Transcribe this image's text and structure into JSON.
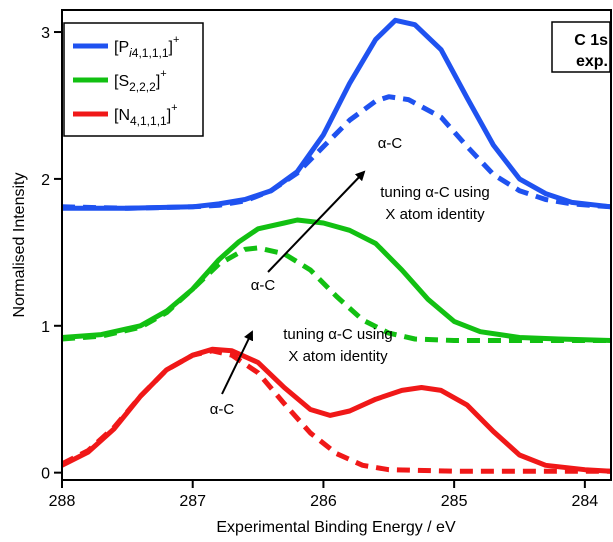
{
  "chart_data": {
    "type": "line",
    "xlabel": "Experimental Binding Energy / eV",
    "ylabel": "Normalised Intensity",
    "xlim": [
      288,
      283.8
    ],
    "ylim": [
      -0.05,
      3.15
    ],
    "x_reversed": true,
    "x_ticks": [
      288,
      287,
      286,
      285,
      284
    ],
    "y_ticks": [
      0,
      1,
      2,
      3
    ],
    "grid": false,
    "legend_position": "top-left",
    "badge": [
      "C 1s",
      "exp."
    ],
    "series": [
      {
        "name": "[Pi4,1,1,1]+",
        "legend": {
          "base": "[P",
          "sub": "i4,1,1,1",
          "close": "]",
          "sup": "+"
        },
        "color": "#1f52f0",
        "solid": [
          [
            288.0,
            1.8
          ],
          [
            287.5,
            1.8
          ],
          [
            287.0,
            1.81
          ],
          [
            286.8,
            1.83
          ],
          [
            286.6,
            1.86
          ],
          [
            286.4,
            1.92
          ],
          [
            286.2,
            2.05
          ],
          [
            286.0,
            2.3
          ],
          [
            285.8,
            2.65
          ],
          [
            285.6,
            2.95
          ],
          [
            285.45,
            3.08
          ],
          [
            285.3,
            3.05
          ],
          [
            285.1,
            2.88
          ],
          [
            284.9,
            2.55
          ],
          [
            284.7,
            2.23
          ],
          [
            284.5,
            2.0
          ],
          [
            284.3,
            1.9
          ],
          [
            284.1,
            1.84
          ],
          [
            283.8,
            1.81
          ]
        ],
        "dashed": [
          [
            288.0,
            1.81
          ],
          [
            287.5,
            1.8
          ],
          [
            287.0,
            1.81
          ],
          [
            286.8,
            1.82
          ],
          [
            286.6,
            1.85
          ],
          [
            286.4,
            1.92
          ],
          [
            286.2,
            2.04
          ],
          [
            286.0,
            2.22
          ],
          [
            285.8,
            2.4
          ],
          [
            285.6,
            2.53
          ],
          [
            285.5,
            2.56
          ],
          [
            285.35,
            2.54
          ],
          [
            285.1,
            2.42
          ],
          [
            284.9,
            2.22
          ],
          [
            284.7,
            2.03
          ],
          [
            284.5,
            1.92
          ],
          [
            284.3,
            1.86
          ],
          [
            284.1,
            1.83
          ],
          [
            283.8,
            1.81
          ]
        ]
      },
      {
        "name": "[S2,2,2]+",
        "legend": {
          "base": "[S",
          "sub": "2,2,2",
          "close": "]",
          "sup": "+"
        },
        "color": "#12c012",
        "solid": [
          [
            288.0,
            0.92
          ],
          [
            287.7,
            0.94
          ],
          [
            287.4,
            1.0
          ],
          [
            287.2,
            1.1
          ],
          [
            287.0,
            1.25
          ],
          [
            286.8,
            1.45
          ],
          [
            286.65,
            1.57
          ],
          [
            286.5,
            1.66
          ],
          [
            286.3,
            1.7
          ],
          [
            286.2,
            1.72
          ],
          [
            286.0,
            1.7
          ],
          [
            285.8,
            1.65
          ],
          [
            285.6,
            1.56
          ],
          [
            285.4,
            1.38
          ],
          [
            285.2,
            1.18
          ],
          [
            285.0,
            1.03
          ],
          [
            284.8,
            0.96
          ],
          [
            284.5,
            0.92
          ],
          [
            284.2,
            0.91
          ],
          [
            283.8,
            0.9
          ]
        ],
        "dashed": [
          [
            288.0,
            0.91
          ],
          [
            287.7,
            0.93
          ],
          [
            287.4,
            0.99
          ],
          [
            287.2,
            1.09
          ],
          [
            287.0,
            1.25
          ],
          [
            286.8,
            1.42
          ],
          [
            286.6,
            1.52
          ],
          [
            286.5,
            1.53
          ],
          [
            286.3,
            1.49
          ],
          [
            286.1,
            1.38
          ],
          [
            285.9,
            1.2
          ],
          [
            285.7,
            1.04
          ],
          [
            285.5,
            0.95
          ],
          [
            285.3,
            0.91
          ],
          [
            285.0,
            0.9
          ],
          [
            284.5,
            0.9
          ],
          [
            283.8,
            0.9
          ]
        ]
      },
      {
        "name": "[N4,1,1,1]+",
        "legend": {
          "base": "[N",
          "sub": "4,1,1,1",
          "close": "]",
          "sup": "+"
        },
        "color": "#f01818",
        "solid": [
          [
            288.0,
            0.05
          ],
          [
            287.8,
            0.14
          ],
          [
            287.6,
            0.3
          ],
          [
            287.4,
            0.52
          ],
          [
            287.2,
            0.7
          ],
          [
            287.0,
            0.8
          ],
          [
            286.85,
            0.84
          ],
          [
            286.7,
            0.83
          ],
          [
            286.5,
            0.75
          ],
          [
            286.3,
            0.58
          ],
          [
            286.1,
            0.43
          ],
          [
            285.95,
            0.39
          ],
          [
            285.8,
            0.42
          ],
          [
            285.6,
            0.5
          ],
          [
            285.4,
            0.56
          ],
          [
            285.25,
            0.58
          ],
          [
            285.1,
            0.56
          ],
          [
            284.9,
            0.46
          ],
          [
            284.7,
            0.28
          ],
          [
            284.5,
            0.12
          ],
          [
            284.3,
            0.05
          ],
          [
            284.0,
            0.02
          ],
          [
            283.8,
            0.01
          ]
        ],
        "dashed": [
          [
            288.0,
            0.06
          ],
          [
            287.8,
            0.15
          ],
          [
            287.6,
            0.31
          ],
          [
            287.4,
            0.52
          ],
          [
            287.2,
            0.7
          ],
          [
            287.0,
            0.8
          ],
          [
            286.85,
            0.83
          ],
          [
            286.7,
            0.8
          ],
          [
            286.5,
            0.68
          ],
          [
            286.3,
            0.47
          ],
          [
            286.1,
            0.27
          ],
          [
            285.9,
            0.13
          ],
          [
            285.7,
            0.05
          ],
          [
            285.5,
            0.02
          ],
          [
            285.0,
            0.01
          ],
          [
            284.5,
            0.01
          ],
          [
            283.8,
            0.01
          ]
        ]
      }
    ],
    "annotations": {
      "alpha_c": "α-C",
      "tuning_line1": "tuning α-C using",
      "tuning_line2": "X atom identity"
    }
  }
}
